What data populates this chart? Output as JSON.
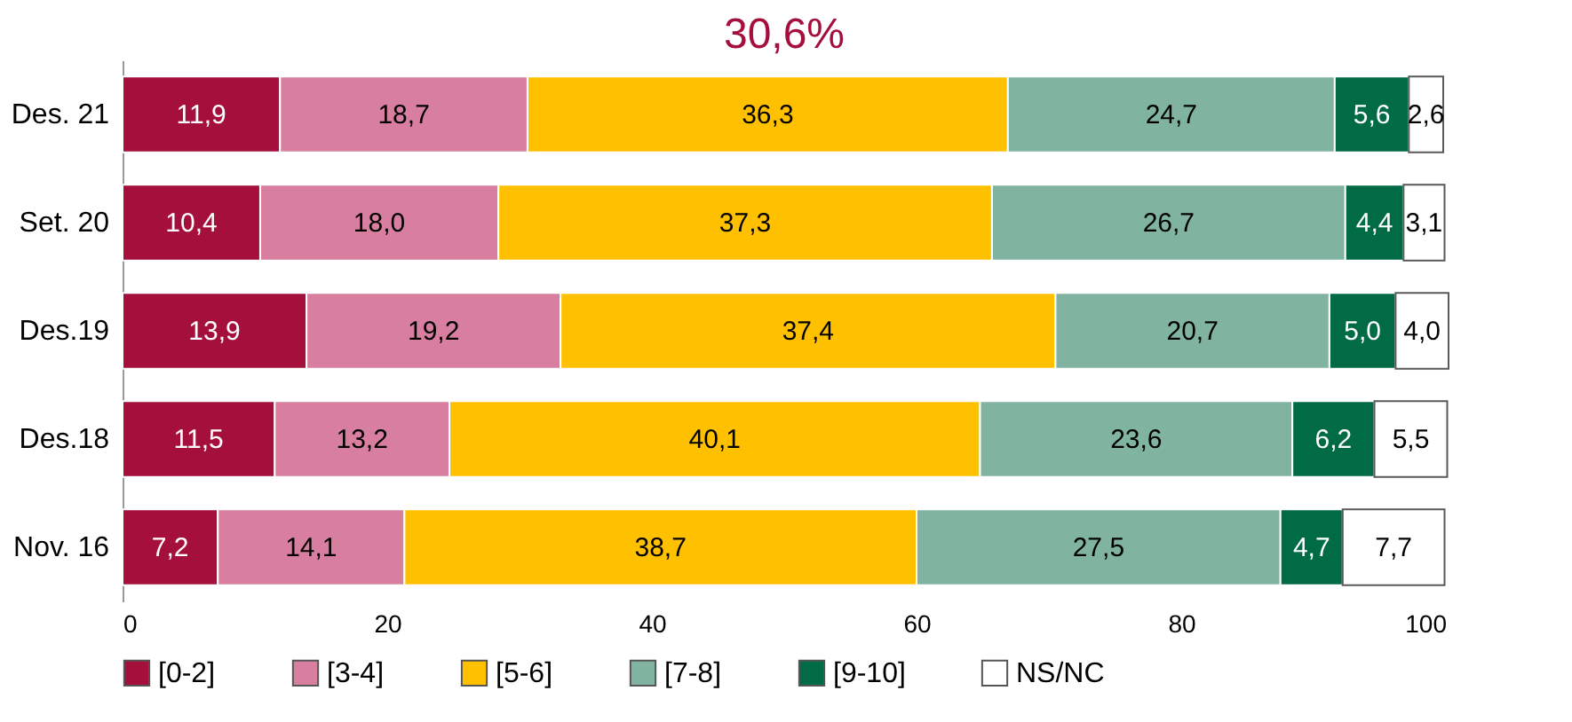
{
  "chart_data": {
    "type": "bar",
    "orientation": "horizontal",
    "stacked": true,
    "categories": [
      "Des. 21",
      "Set. 20",
      "Des.19",
      "Des.18",
      "Nov. 16"
    ],
    "series": [
      {
        "name": "[0-2]",
        "color": "#a50f3c",
        "values": [
          11.9,
          10.4,
          13.9,
          11.5,
          7.2
        ],
        "value_labels": [
          "11,9",
          "10,4",
          "13,9",
          "11,5",
          "7,2"
        ]
      },
      {
        "name": "[3-4]",
        "color": "#d87f9f",
        "values": [
          18.7,
          18.0,
          19.2,
          13.2,
          14.1
        ],
        "value_labels": [
          "18,7",
          "18,0",
          "19,2",
          "13,2",
          "14,1"
        ]
      },
      {
        "name": "[5-6]",
        "color": "#ffc000",
        "values": [
          36.3,
          37.3,
          37.4,
          40.1,
          38.7
        ],
        "value_labels": [
          "36,3",
          "37,3",
          "37,4",
          "40,1",
          "38,7"
        ]
      },
      {
        "name": "[7-8]",
        "color": "#80b4a0",
        "values": [
          24.7,
          26.7,
          20.7,
          23.6,
          27.5
        ],
        "value_labels": [
          "24,7",
          "26,7",
          "20,7",
          "23,6",
          "27,5"
        ]
      },
      {
        "name": "[9-10]",
        "color": "#006b45",
        "values": [
          5.6,
          4.4,
          5.0,
          6.2,
          4.7
        ],
        "value_labels": [
          "5,6",
          "4,4",
          "5,0",
          "6,2",
          "4,7"
        ]
      },
      {
        "name": "NS/NC",
        "color": "#ffffff",
        "values": [
          2.6,
          3.1,
          4.0,
          5.5,
          7.7
        ],
        "value_labels": [
          "2,6",
          "3,1",
          "4,0",
          "5,5",
          "7,7"
        ]
      }
    ],
    "xlim": [
      0,
      100
    ],
    "xticks": [
      0,
      20,
      40,
      60,
      80,
      100
    ],
    "legend": "bottom",
    "grid": false,
    "annotations": [
      "30,6%"
    ]
  }
}
